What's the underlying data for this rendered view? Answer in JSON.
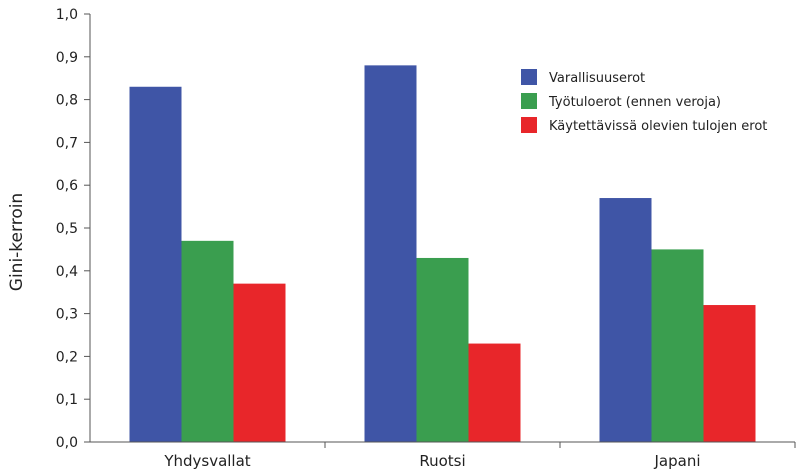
{
  "chart_data": {
    "type": "bar",
    "title": "",
    "xlabel": "",
    "ylabel": "Gini-kerroin",
    "ylim": [
      0,
      1.0
    ],
    "yticks": [
      "0,0",
      "0,1",
      "0,2",
      "0,3",
      "0,4",
      "0,5",
      "0,6",
      "0,7",
      "0,8",
      "0,9",
      "1,0"
    ],
    "categories": [
      "Yhdysvallat",
      "Ruotsi",
      "Japani"
    ],
    "series": [
      {
        "name": "Varallisuuserot",
        "color": "#3f55a6",
        "values": [
          0.83,
          0.88,
          0.57
        ]
      },
      {
        "name": "Työtuloerot (ennen veroja)",
        "color": "#3a9e4f",
        "values": [
          0.47,
          0.43,
          0.45
        ]
      },
      {
        "name": "Käytettävissä olevien tulojen erot",
        "color": "#e8262a",
        "values": [
          0.37,
          0.23,
          0.32
        ]
      }
    ],
    "legend_position": "top-right",
    "grid": false
  }
}
